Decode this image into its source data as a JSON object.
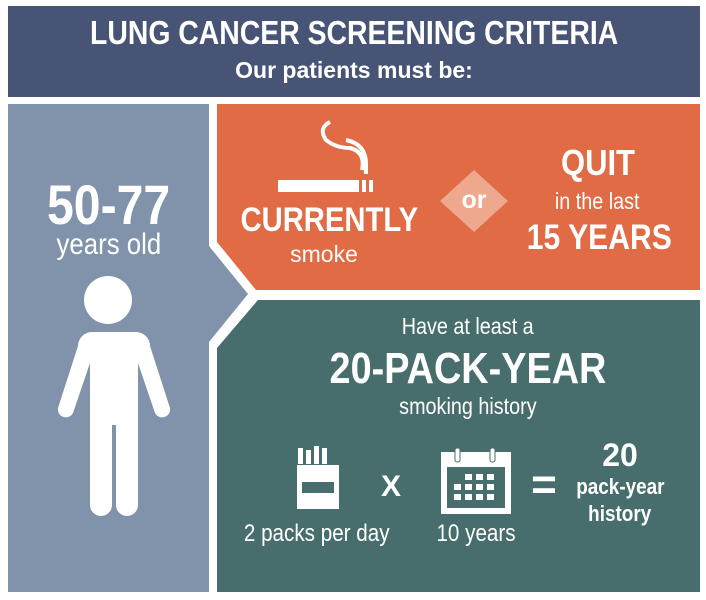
{
  "header": {
    "title": "LUNG CANCER SCREENING CRITERIA",
    "subtitle": "Our patients must be:"
  },
  "age": {
    "range": "50-77",
    "label": "years old",
    "icon": "person-icon"
  },
  "smoking_status": {
    "current_title": "CURRENTLY",
    "current_sub": "smoke",
    "current_icon": "cigarette-icon",
    "connector": "or",
    "quit_title": "QUIT",
    "quit_mid": "in the last",
    "quit_bottom": "15 YEARS"
  },
  "pack_year": {
    "intro": "Have at least a",
    "headline": "20-PACK-YEAR",
    "sub": "smoking history",
    "packs_label": "2 packs per day",
    "packs_icon": "cigarette-pack-icon",
    "times": "X",
    "years_label": "10 years",
    "years_icon": "calendar-icon",
    "equals": "=",
    "result_number": "20",
    "result_line1": "pack-year",
    "result_line2": "history"
  },
  "colors": {
    "header": "#475475",
    "age_panel": "#8193ab",
    "smoking_panel": "#e06b45",
    "pack_panel": "#476e6c",
    "or_diamond": "#eea88e"
  }
}
